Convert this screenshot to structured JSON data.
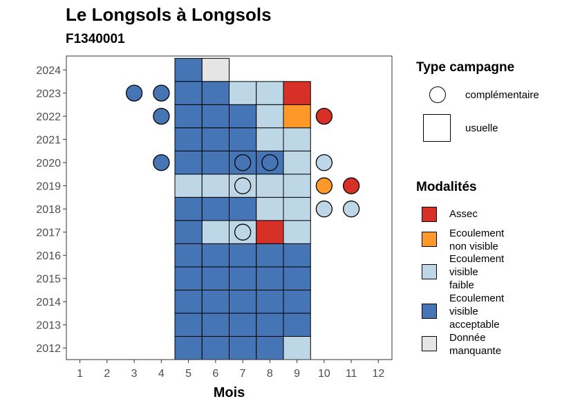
{
  "title": "Le Longsols à Longsols",
  "subtitle": "F1340001",
  "colors": {
    "Assec": "#D73027",
    "Ecoulement non visible": "#FE9929",
    "Ecoulement visible faible": "#BDD7E7",
    "Ecoulement visible acceptable": "#4575B4",
    "Donnée manquante": "#E5E5E5"
  },
  "legend": {
    "type_title": "Type campagne",
    "type_items": [
      {
        "label": "complémentaire",
        "shape": "circle"
      },
      {
        "label": "usuelle",
        "shape": "square"
      }
    ],
    "mod_title": "Modalités",
    "mod_items": [
      {
        "label": "Assec",
        "color": "#D73027"
      },
      {
        "label": "Ecoulement\nnon visible",
        "color": "#FE9929"
      },
      {
        "label": "Ecoulement\nvisible\nfaible",
        "color": "#BDD7E7"
      },
      {
        "label": "Ecoulement\nvisible\nacceptable",
        "color": "#4575B4"
      },
      {
        "label": "Donnée\nmanquante",
        "color": "#E5E5E5"
      }
    ]
  },
  "chart_data": {
    "type": "heatmap",
    "title": "Le Longsols à Longsols",
    "subtitle": "F1340001",
    "xlabel": "Mois",
    "ylabel": "",
    "x_ticks": [
      1,
      2,
      3,
      4,
      5,
      6,
      7,
      8,
      9,
      10,
      11,
      12
    ],
    "y_ticks": [
      2012,
      2013,
      2014,
      2015,
      2016,
      2017,
      2018,
      2019,
      2020,
      2021,
      2022,
      2023,
      2024
    ],
    "xlim": [
      0.5,
      12.5
    ],
    "ylim": [
      2011.5,
      2024.6
    ],
    "grid": false,
    "legend_position": "right",
    "usuelle": [
      {
        "year": 2024,
        "month": 5,
        "value": "Ecoulement visible acceptable"
      },
      {
        "year": 2024,
        "month": 6,
        "value": "Donnée manquante"
      },
      {
        "year": 2023,
        "month": 5,
        "value": "Ecoulement visible acceptable"
      },
      {
        "year": 2023,
        "month": 6,
        "value": "Ecoulement visible acceptable"
      },
      {
        "year": 2023,
        "month": 7,
        "value": "Ecoulement visible faible"
      },
      {
        "year": 2023,
        "month": 8,
        "value": "Ecoulement visible faible"
      },
      {
        "year": 2023,
        "month": 9,
        "value": "Assec"
      },
      {
        "year": 2022,
        "month": 5,
        "value": "Ecoulement visible acceptable"
      },
      {
        "year": 2022,
        "month": 6,
        "value": "Ecoulement visible acceptable"
      },
      {
        "year": 2022,
        "month": 7,
        "value": "Ecoulement visible acceptable"
      },
      {
        "year": 2022,
        "month": 8,
        "value": "Ecoulement visible faible"
      },
      {
        "year": 2022,
        "month": 9,
        "value": "Ecoulement non visible"
      },
      {
        "year": 2021,
        "month": 5,
        "value": "Ecoulement visible acceptable"
      },
      {
        "year": 2021,
        "month": 6,
        "value": "Ecoulement visible acceptable"
      },
      {
        "year": 2021,
        "month": 7,
        "value": "Ecoulement visible acceptable"
      },
      {
        "year": 2021,
        "month": 8,
        "value": "Ecoulement visible faible"
      },
      {
        "year": 2021,
        "month": 9,
        "value": "Ecoulement visible faible"
      },
      {
        "year": 2020,
        "month": 5,
        "value": "Ecoulement visible acceptable"
      },
      {
        "year": 2020,
        "month": 6,
        "value": "Ecoulement visible acceptable"
      },
      {
        "year": 2020,
        "month": 7,
        "value": "Ecoulement visible acceptable"
      },
      {
        "year": 2020,
        "month": 8,
        "value": "Ecoulement visible acceptable"
      },
      {
        "year": 2020,
        "month": 9,
        "value": "Ecoulement visible faible"
      },
      {
        "year": 2019,
        "month": 5,
        "value": "Ecoulement visible faible"
      },
      {
        "year": 2019,
        "month": 6,
        "value": "Ecoulement visible faible"
      },
      {
        "year": 2019,
        "month": 7,
        "value": "Ecoulement visible faible"
      },
      {
        "year": 2019,
        "month": 8,
        "value": "Ecoulement visible faible"
      },
      {
        "year": 2019,
        "month": 9,
        "value": "Ecoulement visible faible"
      },
      {
        "year": 2018,
        "month": 5,
        "value": "Ecoulement visible acceptable"
      },
      {
        "year": 2018,
        "month": 6,
        "value": "Ecoulement visible acceptable"
      },
      {
        "year": 2018,
        "month": 7,
        "value": "Ecoulement visible acceptable"
      },
      {
        "year": 2018,
        "month": 8,
        "value": "Ecoulement visible faible"
      },
      {
        "year": 2018,
        "month": 9,
        "value": "Ecoulement visible faible"
      },
      {
        "year": 2017,
        "month": 5,
        "value": "Ecoulement visible acceptable"
      },
      {
        "year": 2017,
        "month": 6,
        "value": "Ecoulement visible faible"
      },
      {
        "year": 2017,
        "month": 7,
        "value": "Ecoulement visible faible"
      },
      {
        "year": 2017,
        "month": 8,
        "value": "Assec"
      },
      {
        "year": 2017,
        "month": 9,
        "value": "Ecoulement visible faible"
      },
      {
        "year": 2016,
        "month": 5,
        "value": "Ecoulement visible acceptable"
      },
      {
        "year": 2016,
        "month": 6,
        "value": "Ecoulement visible acceptable"
      },
      {
        "year": 2016,
        "month": 7,
        "value": "Ecoulement visible acceptable"
      },
      {
        "year": 2016,
        "month": 8,
        "value": "Ecoulement visible acceptable"
      },
      {
        "year": 2016,
        "month": 9,
        "value": "Ecoulement visible acceptable"
      },
      {
        "year": 2015,
        "month": 5,
        "value": "Ecoulement visible acceptable"
      },
      {
        "year": 2015,
        "month": 6,
        "value": "Ecoulement visible acceptable"
      },
      {
        "year": 2015,
        "month": 7,
        "value": "Ecoulement visible acceptable"
      },
      {
        "year": 2015,
        "month": 8,
        "value": "Ecoulement visible acceptable"
      },
      {
        "year": 2015,
        "month": 9,
        "value": "Ecoulement visible acceptable"
      },
      {
        "year": 2014,
        "month": 5,
        "value": "Ecoulement visible acceptable"
      },
      {
        "year": 2014,
        "month": 6,
        "value": "Ecoulement visible acceptable"
      },
      {
        "year": 2014,
        "month": 7,
        "value": "Ecoulement visible acceptable"
      },
      {
        "year": 2014,
        "month": 8,
        "value": "Ecoulement visible acceptable"
      },
      {
        "year": 2014,
        "month": 9,
        "value": "Ecoulement visible acceptable"
      },
      {
        "year": 2013,
        "month": 5,
        "value": "Ecoulement visible acceptable"
      },
      {
        "year": 2013,
        "month": 6,
        "value": "Ecoulement visible acceptable"
      },
      {
        "year": 2013,
        "month": 7,
        "value": "Ecoulement visible acceptable"
      },
      {
        "year": 2013,
        "month": 8,
        "value": "Ecoulement visible acceptable"
      },
      {
        "year": 2013,
        "month": 9,
        "value": "Ecoulement visible acceptable"
      },
      {
        "year": 2012,
        "month": 5,
        "value": "Ecoulement visible acceptable"
      },
      {
        "year": 2012,
        "month": 6,
        "value": "Ecoulement visible acceptable"
      },
      {
        "year": 2012,
        "month": 7,
        "value": "Ecoulement visible acceptable"
      },
      {
        "year": 2012,
        "month": 8,
        "value": "Ecoulement visible acceptable"
      },
      {
        "year": 2012,
        "month": 9,
        "value": "Ecoulement visible faible"
      }
    ],
    "complementaire": [
      {
        "year": 2023,
        "month": 3,
        "value": "Ecoulement visible acceptable"
      },
      {
        "year": 2023,
        "month": 4,
        "value": "Ecoulement visible acceptable"
      },
      {
        "year": 2022,
        "month": 4,
        "value": "Ecoulement visible acceptable"
      },
      {
        "year": 2022,
        "month": 10,
        "value": "Assec"
      },
      {
        "year": 2020,
        "month": 4,
        "value": "Ecoulement visible acceptable"
      },
      {
        "year": 2020,
        "month": 7,
        "value": "Ecoulement visible acceptable"
      },
      {
        "year": 2020,
        "month": 8,
        "value": "Ecoulement visible acceptable"
      },
      {
        "year": 2020,
        "month": 10,
        "value": "Ecoulement visible faible"
      },
      {
        "year": 2019,
        "month": 7,
        "value": "Ecoulement visible faible"
      },
      {
        "year": 2019,
        "month": 10,
        "value": "Ecoulement non visible"
      },
      {
        "year": 2019,
        "month": 11,
        "value": "Assec"
      },
      {
        "year": 2018,
        "month": 10,
        "value": "Ecoulement visible faible"
      },
      {
        "year": 2018,
        "month": 11,
        "value": "Ecoulement visible faible"
      },
      {
        "year": 2017,
        "month": 7,
        "value": "Ecoulement visible faible"
      }
    ]
  }
}
